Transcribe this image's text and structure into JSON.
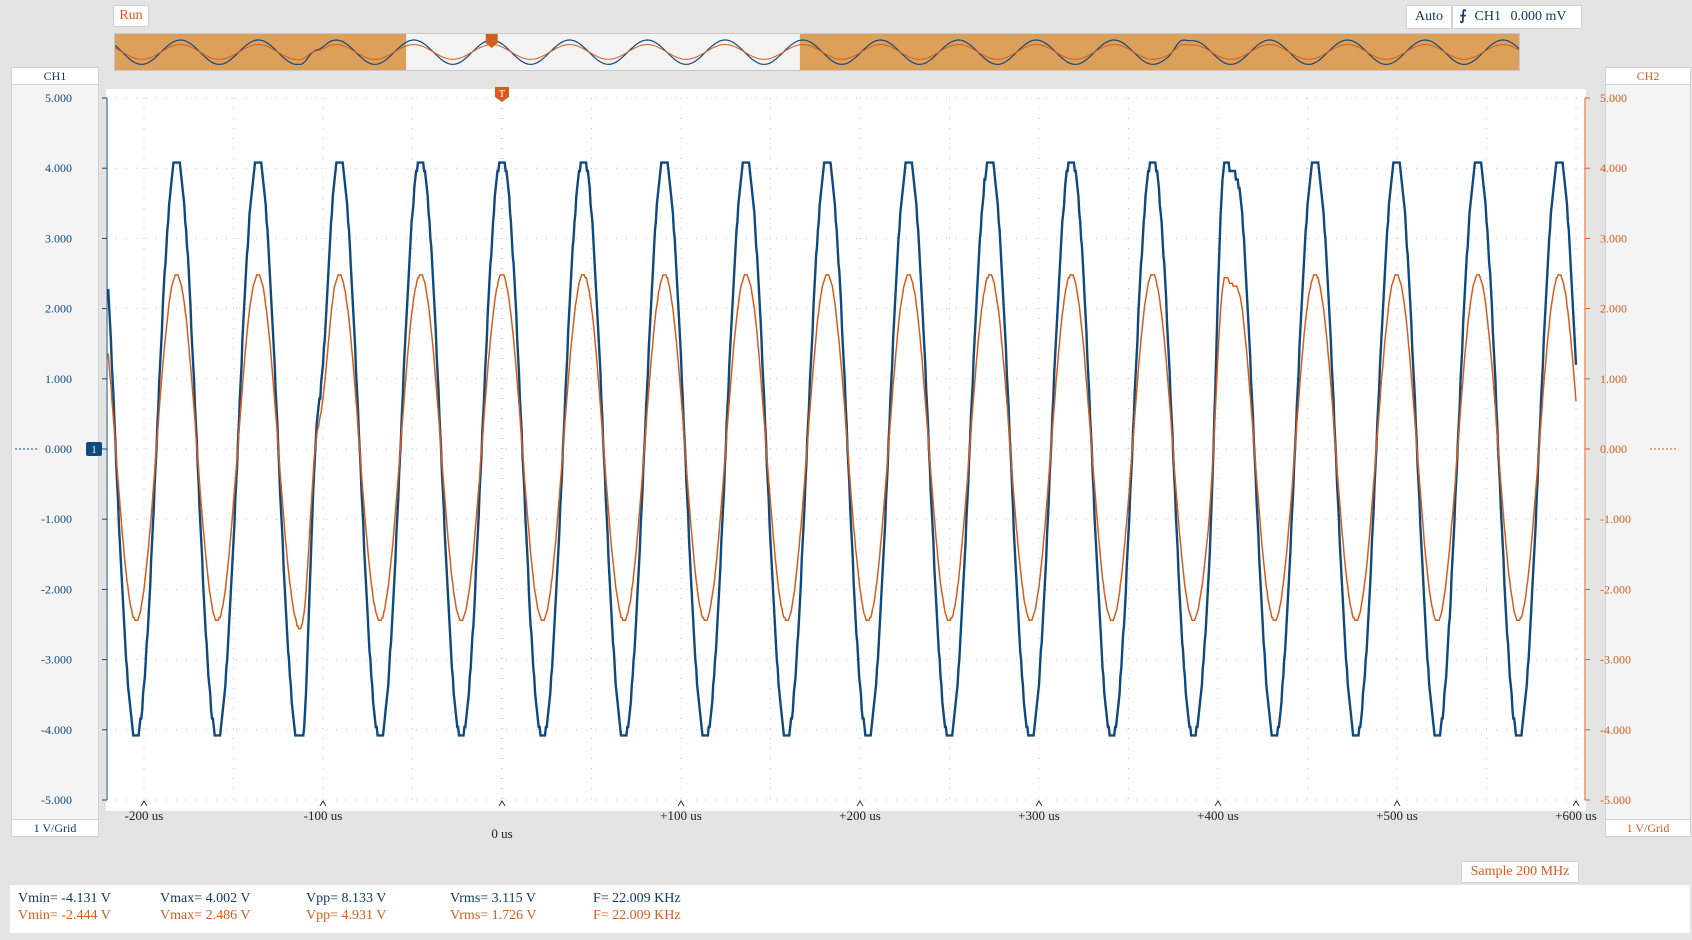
{
  "status": {
    "run_label": "Run"
  },
  "trigger": {
    "mode": "Auto",
    "source": "CH1",
    "level": "0.000 mV",
    "marker": "T"
  },
  "channels": {
    "ch1": {
      "label": "CH1",
      "scale": "1 V/Grid",
      "color": "#0e4a7e",
      "marker": "1"
    },
    "ch2": {
      "label": "CH2",
      "scale": "1 V/Grid",
      "color": "#d45d1e"
    }
  },
  "sample": "Sample 200 MHz",
  "chart_data": {
    "type": "line",
    "xlabel": "",
    "ylabel": "",
    "x_ticks": [
      "-200 us",
      "-100 us",
      "+100 us",
      "+200 us",
      "+300 us",
      "+400 us",
      "+500 us",
      "+600 us"
    ],
    "x_zero_label": "0 us",
    "xlim": [
      -220,
      600
    ],
    "ylim": [
      -5,
      5
    ],
    "y_ticks_left": [
      "5.000",
      "4.000",
      "3.000",
      "2.000",
      "1.000",
      "0.000",
      "-1.000",
      "-2.000",
      "-3.000",
      "-4.000",
      "-5.000"
    ],
    "y_ticks_right": [
      "5.000",
      "4.000",
      "3.000",
      "2.000",
      "1.000",
      "0.000",
      "-1.000",
      "-2.000",
      "-3.000",
      "-4.000",
      "-5.000"
    ],
    "frequency_khz": 22.009,
    "series": [
      {
        "name": "CH1",
        "color": "#0e4a7e",
        "vmin": -4.131,
        "vmax": 4.002,
        "anomalies_us": [
          -105,
          402
        ]
      },
      {
        "name": "CH2",
        "color": "#d45d1e",
        "vmin": -2.444,
        "vmax": 2.486,
        "anomalies_us": [
          -105,
          402
        ]
      }
    ]
  },
  "measurements": {
    "ch1": {
      "vmin": "Vmin= -4.131 V",
      "vmax": "Vmax= 4.002 V",
      "vpp": "Vpp= 8.133 V",
      "vrms": "Vrms= 3.115 V",
      "freq": "F= 22.009 KHz"
    },
    "ch2": {
      "vmin": "Vmin= -2.444 V",
      "vmax": "Vmax= 2.486 V",
      "vpp": "Vpp= 4.931 V",
      "vrms": "Vrms= 1.726 V",
      "freq": "F= 22.009 KHz"
    }
  }
}
